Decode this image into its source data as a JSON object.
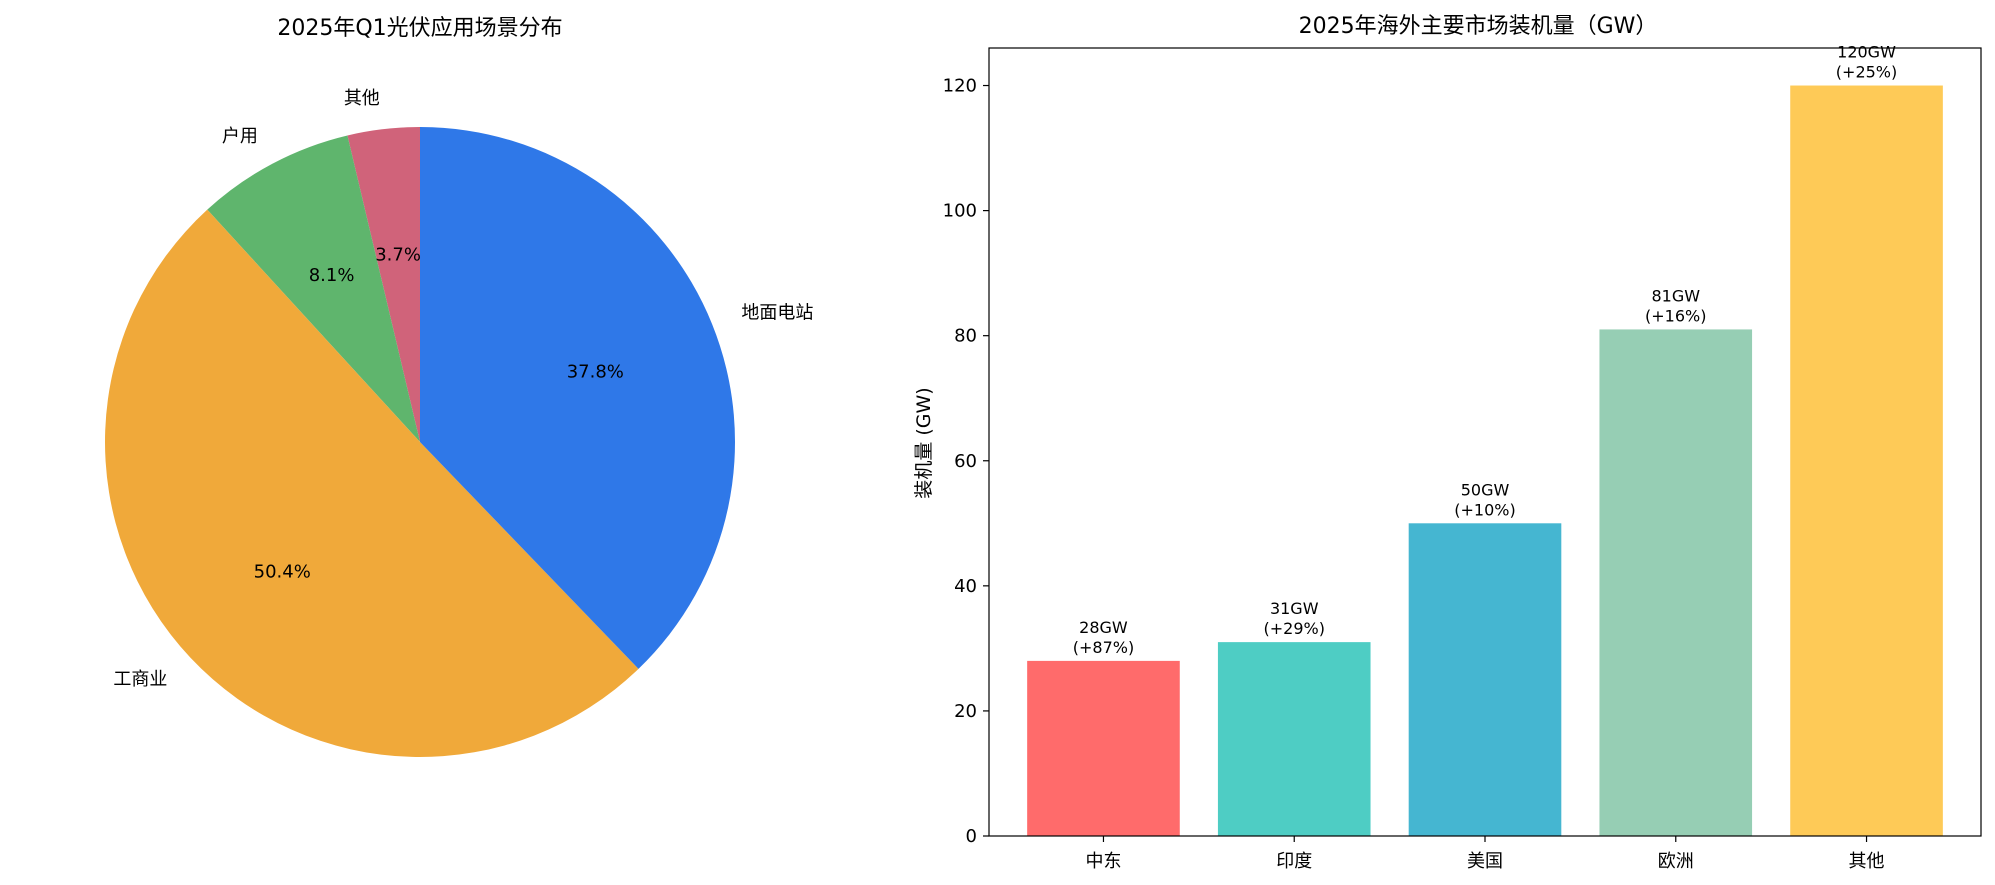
{
  "chart_data": [
    {
      "type": "pie",
      "title": "2025年Q1光伏应用场景分布",
      "slices": [
        {
          "label": "其他",
          "value": 3.7,
          "pct_label": "3.7%",
          "color": "#D0637A"
        },
        {
          "label": "户用",
          "value": 8.1,
          "pct_label": "8.1%",
          "color": "#5FB56D"
        },
        {
          "label": "工商业",
          "value": 50.4,
          "pct_label": "50.4%",
          "color": "#F0A93A"
        },
        {
          "label": "地面电站",
          "value": 37.8,
          "pct_label": "37.8%",
          "color": "#2F78E8"
        }
      ]
    },
    {
      "type": "bar",
      "title": "2025年海外主要市场装机量（GW）",
      "xlabel": "",
      "ylabel": "装机量 (GW)",
      "ylim": [
        0,
        126
      ],
      "yticks": [
        0,
        20,
        40,
        60,
        80,
        100,
        120
      ],
      "categories": [
        "中东",
        "印度",
        "美国",
        "欧洲",
        "其他"
      ],
      "values": [
        28,
        31,
        50,
        81,
        120
      ],
      "value_labels": [
        "28GW",
        "31GW",
        "50GW",
        "81GW",
        "120GW"
      ],
      "growth_labels": [
        "(+87%)",
        "(+29%)",
        "(+10%)",
        "(+16%)",
        "(+25%)"
      ],
      "colors": [
        "#FF6B6B",
        "#4ECDC4",
        "#45B6D1",
        "#96CEB4",
        "#FECA57"
      ],
      "grid": false
    }
  ]
}
